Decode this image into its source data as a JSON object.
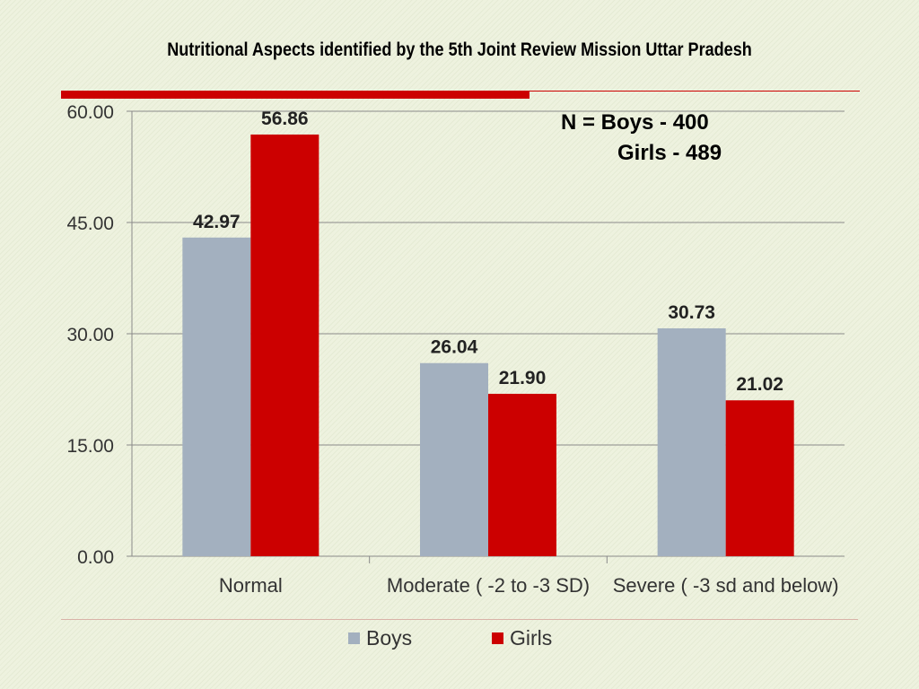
{
  "slide": {
    "title": "Nutritional Aspects identified by the 5th Joint Review Mission Uttar Pradesh",
    "annotation_line1": "N =  Boys - 400",
    "annotation_line2": "Girls -  489",
    "accent_color": "#cc0000"
  },
  "chart_data": {
    "type": "bar",
    "categories": [
      "Normal",
      "Moderate ( -2 to -3 SD)",
      "Severe  ( -3 sd and below)"
    ],
    "series": [
      {
        "name": "Boys",
        "values": [
          42.97,
          26.04,
          30.73
        ],
        "color": "#a3b0bf"
      },
      {
        "name": "Girls",
        "values": [
          56.86,
          21.9,
          21.02
        ],
        "color": "#cc0000"
      }
    ],
    "ylim": [
      0,
      60
    ],
    "yticks": [
      "0.00",
      "15.00",
      "30.00",
      "45.00",
      "60.00"
    ],
    "data_labels": [
      [
        "42.97",
        "26.04",
        "30.73"
      ],
      [
        "56.86",
        "21.90",
        "21.02"
      ]
    ],
    "grid": true,
    "legend": "bottom"
  }
}
